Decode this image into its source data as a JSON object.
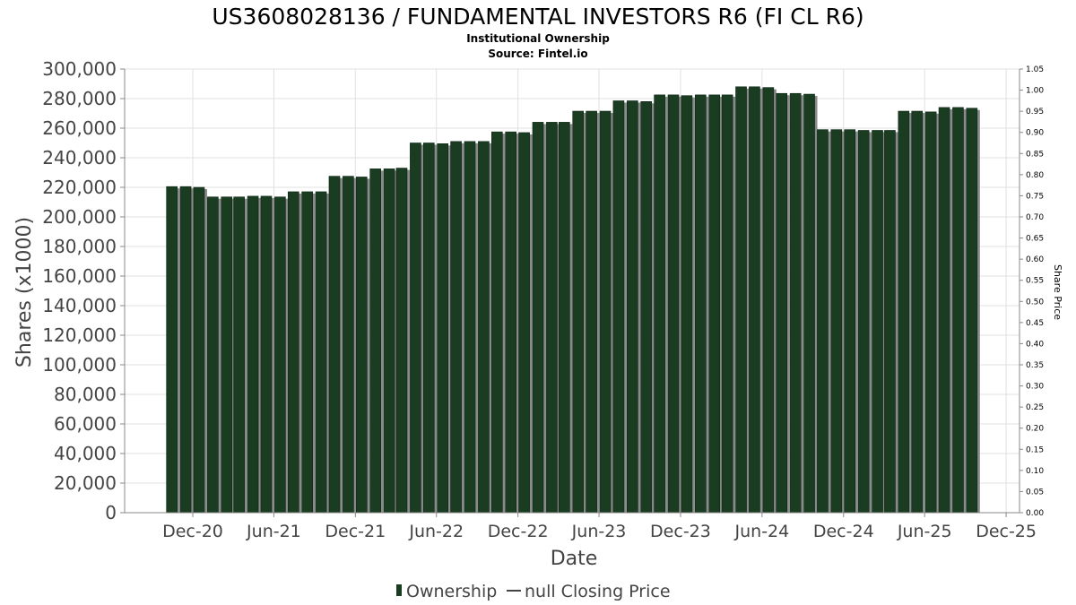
{
  "chart_data": {
    "type": "bar",
    "title": "US3608028136 / FUNDAMENTAL INVESTORS R6 (FI CL R6)",
    "subtitle": "Institutional Ownership",
    "source": "Source: Fintel.io",
    "xlabel": "Date",
    "ylabel": "Shares (x1000)",
    "y2label": "Share Price",
    "ylim": [
      0,
      300000
    ],
    "y2lim": [
      0,
      1.05
    ],
    "xlim": [
      "2020-07-01",
      "2025-12-31"
    ],
    "grid": true,
    "legend_placement": "bottom-center",
    "x_ticks": [
      {
        "label": "Dec-20",
        "date": "2020-12-01"
      },
      {
        "label": "Jun-21",
        "date": "2021-06-01"
      },
      {
        "label": "Dec-21",
        "date": "2021-12-01"
      },
      {
        "label": "Jun-22",
        "date": "2022-06-01"
      },
      {
        "label": "Dec-22",
        "date": "2022-12-01"
      },
      {
        "label": "Jun-23",
        "date": "2023-06-01"
      },
      {
        "label": "Dec-23",
        "date": "2023-12-01"
      },
      {
        "label": "Jun-24",
        "date": "2024-06-01"
      },
      {
        "label": "Dec-24",
        "date": "2024-12-01"
      },
      {
        "label": "Jun-25",
        "date": "2025-06-01"
      },
      {
        "label": "Dec-25",
        "date": "2025-12-01"
      }
    ],
    "y_ticks": [
      "0",
      "20,000",
      "40,000",
      "60,000",
      "80,000",
      "100,000",
      "120,000",
      "140,000",
      "160,000",
      "180,000",
      "200,000",
      "220,000",
      "240,000",
      "260,000",
      "280,000",
      "300,000"
    ],
    "y2_ticks": [
      "0.00",
      "0.05",
      "0.10",
      "0.15",
      "0.20",
      "0.25",
      "0.30",
      "0.35",
      "0.40",
      "0.45",
      "0.50",
      "0.55",
      "0.60",
      "0.65",
      "0.70",
      "0.75",
      "0.80",
      "0.85",
      "0.90",
      "0.95",
      "1.00",
      "1.05"
    ],
    "series": [
      {
        "name": "Ownership",
        "color": "#1a3d22",
        "points": [
          {
            "date": "2020-10-15",
            "value": 220500
          },
          {
            "date": "2020-11-15",
            "value": 220500
          },
          {
            "date": "2020-12-15",
            "value": 220000
          },
          {
            "date": "2021-01-15",
            "value": 213500
          },
          {
            "date": "2021-02-15",
            "value": 213500
          },
          {
            "date": "2021-03-15",
            "value": 213500
          },
          {
            "date": "2021-04-15",
            "value": 214000
          },
          {
            "date": "2021-05-15",
            "value": 214000
          },
          {
            "date": "2021-06-15",
            "value": 213500
          },
          {
            "date": "2021-07-15",
            "value": 217000
          },
          {
            "date": "2021-08-15",
            "value": 217000
          },
          {
            "date": "2021-09-15",
            "value": 217000
          },
          {
            "date": "2021-10-15",
            "value": 227500
          },
          {
            "date": "2021-11-15",
            "value": 227500
          },
          {
            "date": "2021-12-15",
            "value": 227000
          },
          {
            "date": "2022-01-15",
            "value": 232500
          },
          {
            "date": "2022-02-15",
            "value": 232500
          },
          {
            "date": "2022-03-15",
            "value": 233000
          },
          {
            "date": "2022-04-15",
            "value": 250000
          },
          {
            "date": "2022-05-15",
            "value": 250000
          },
          {
            "date": "2022-06-15",
            "value": 249500
          },
          {
            "date": "2022-07-15",
            "value": 251000
          },
          {
            "date": "2022-08-15",
            "value": 251000
          },
          {
            "date": "2022-09-15",
            "value": 251000
          },
          {
            "date": "2022-10-15",
            "value": 257500
          },
          {
            "date": "2022-11-15",
            "value": 257500
          },
          {
            "date": "2022-12-15",
            "value": 257000
          },
          {
            "date": "2023-01-15",
            "value": 264000
          },
          {
            "date": "2023-02-15",
            "value": 264000
          },
          {
            "date": "2023-03-15",
            "value": 264000
          },
          {
            "date": "2023-04-15",
            "value": 271500
          },
          {
            "date": "2023-05-15",
            "value": 271500
          },
          {
            "date": "2023-06-15",
            "value": 271500
          },
          {
            "date": "2023-07-15",
            "value": 278500
          },
          {
            "date": "2023-08-15",
            "value": 278500
          },
          {
            "date": "2023-09-15",
            "value": 278000
          },
          {
            "date": "2023-10-15",
            "value": 282500
          },
          {
            "date": "2023-11-15",
            "value": 282500
          },
          {
            "date": "2023-12-15",
            "value": 282000
          },
          {
            "date": "2024-01-15",
            "value": 282500
          },
          {
            "date": "2024-02-15",
            "value": 282500
          },
          {
            "date": "2024-03-15",
            "value": 282500
          },
          {
            "date": "2024-04-15",
            "value": 288000
          },
          {
            "date": "2024-05-15",
            "value": 288000
          },
          {
            "date": "2024-06-15",
            "value": 287500
          },
          {
            "date": "2024-07-15",
            "value": 283500
          },
          {
            "date": "2024-08-15",
            "value": 283500
          },
          {
            "date": "2024-09-15",
            "value": 283000
          },
          {
            "date": "2024-10-15",
            "value": 259000
          },
          {
            "date": "2024-11-15",
            "value": 259000
          },
          {
            "date": "2024-12-15",
            "value": 259000
          },
          {
            "date": "2025-01-15",
            "value": 258500
          },
          {
            "date": "2025-02-15",
            "value": 258500
          },
          {
            "date": "2025-03-15",
            "value": 258500
          },
          {
            "date": "2025-04-15",
            "value": 271500
          },
          {
            "date": "2025-05-15",
            "value": 271500
          },
          {
            "date": "2025-06-15",
            "value": 271000
          },
          {
            "date": "2025-07-15",
            "value": 274000
          },
          {
            "date": "2025-08-15",
            "value": 274000
          },
          {
            "date": "2025-09-15",
            "value": 273500
          }
        ]
      },
      {
        "name": "null Closing Price",
        "color": "#000000",
        "points": []
      }
    ]
  },
  "legend": {
    "items": [
      {
        "label": "Ownership",
        "color": "#1a3d22",
        "marker": "bar"
      },
      {
        "label": "null Closing Price",
        "color": "#000000",
        "marker": "line"
      }
    ]
  }
}
